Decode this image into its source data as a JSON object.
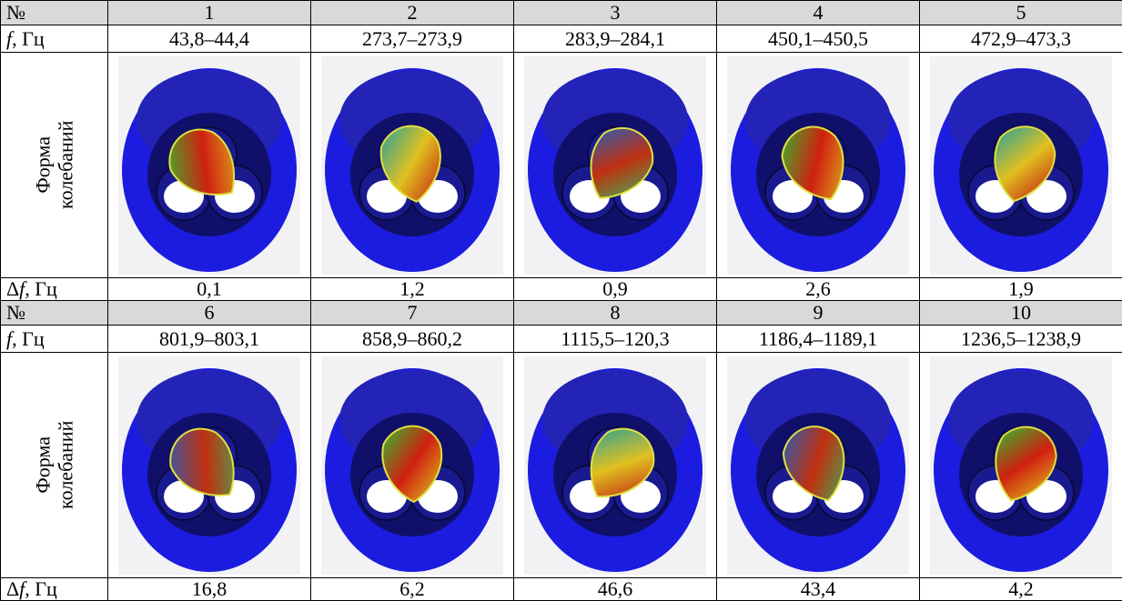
{
  "row_labels": {
    "number": "№",
    "freq": [
      "f",
      ", Гц"
    ],
    "shape": [
      "Форма",
      "колебаний"
    ],
    "delta": [
      "Δ",
      "f",
      ", Гц"
    ]
  },
  "blocks": [
    {
      "numbers": [
        1,
        2,
        3,
        4,
        5
      ],
      "freq": [
        "43,8–44,4",
        "273,7–273,9",
        "283,9–284,1",
        "450,1–450,5",
        "472,9–473,3"
      ],
      "delta": [
        "0,1",
        "1,2",
        "0,9",
        "2,6",
        "1,9"
      ]
    },
    {
      "numbers": [
        6,
        7,
        8,
        9,
        10
      ],
      "freq": [
        "801,9–803,1",
        "858,9–860,2",
        "1115,5–120,3",
        "1186,4–1189,1",
        "1236,5–1238,9"
      ],
      "delta": [
        "16,8",
        "6,2",
        "46,6",
        "43,4",
        "4,2"
      ]
    }
  ]
}
